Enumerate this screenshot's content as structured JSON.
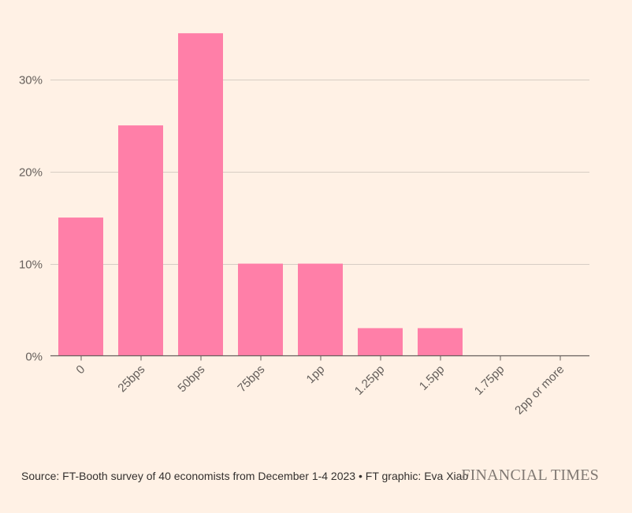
{
  "chart_data": {
    "type": "bar",
    "categories": [
      "0",
      "25bps",
      "50bps",
      "75bps",
      "1pp",
      "1.25pp",
      "1.5pp",
      "1.75pp",
      "2pp or more"
    ],
    "values": [
      15,
      25,
      35,
      10,
      10,
      3,
      3,
      0,
      0
    ],
    "ylim": [
      0,
      36
    ],
    "yticks": [
      0,
      10,
      20,
      30
    ],
    "ytick_labels": [
      "0%",
      "10%",
      "20%",
      "30%"
    ],
    "grid": true,
    "bar_color": "#ff7fa8",
    "grid_color": "#d6cdc4",
    "axis_color": "#66605c",
    "text_color": "#66605c",
    "title": "",
    "xlabel": "",
    "ylabel": ""
  },
  "footer": {
    "source": "Source: FT-Booth survey of 40 economists from December 1-4 2023 • FT graphic: Eva Xiao",
    "brand": "FINANCIAL TIMES"
  }
}
